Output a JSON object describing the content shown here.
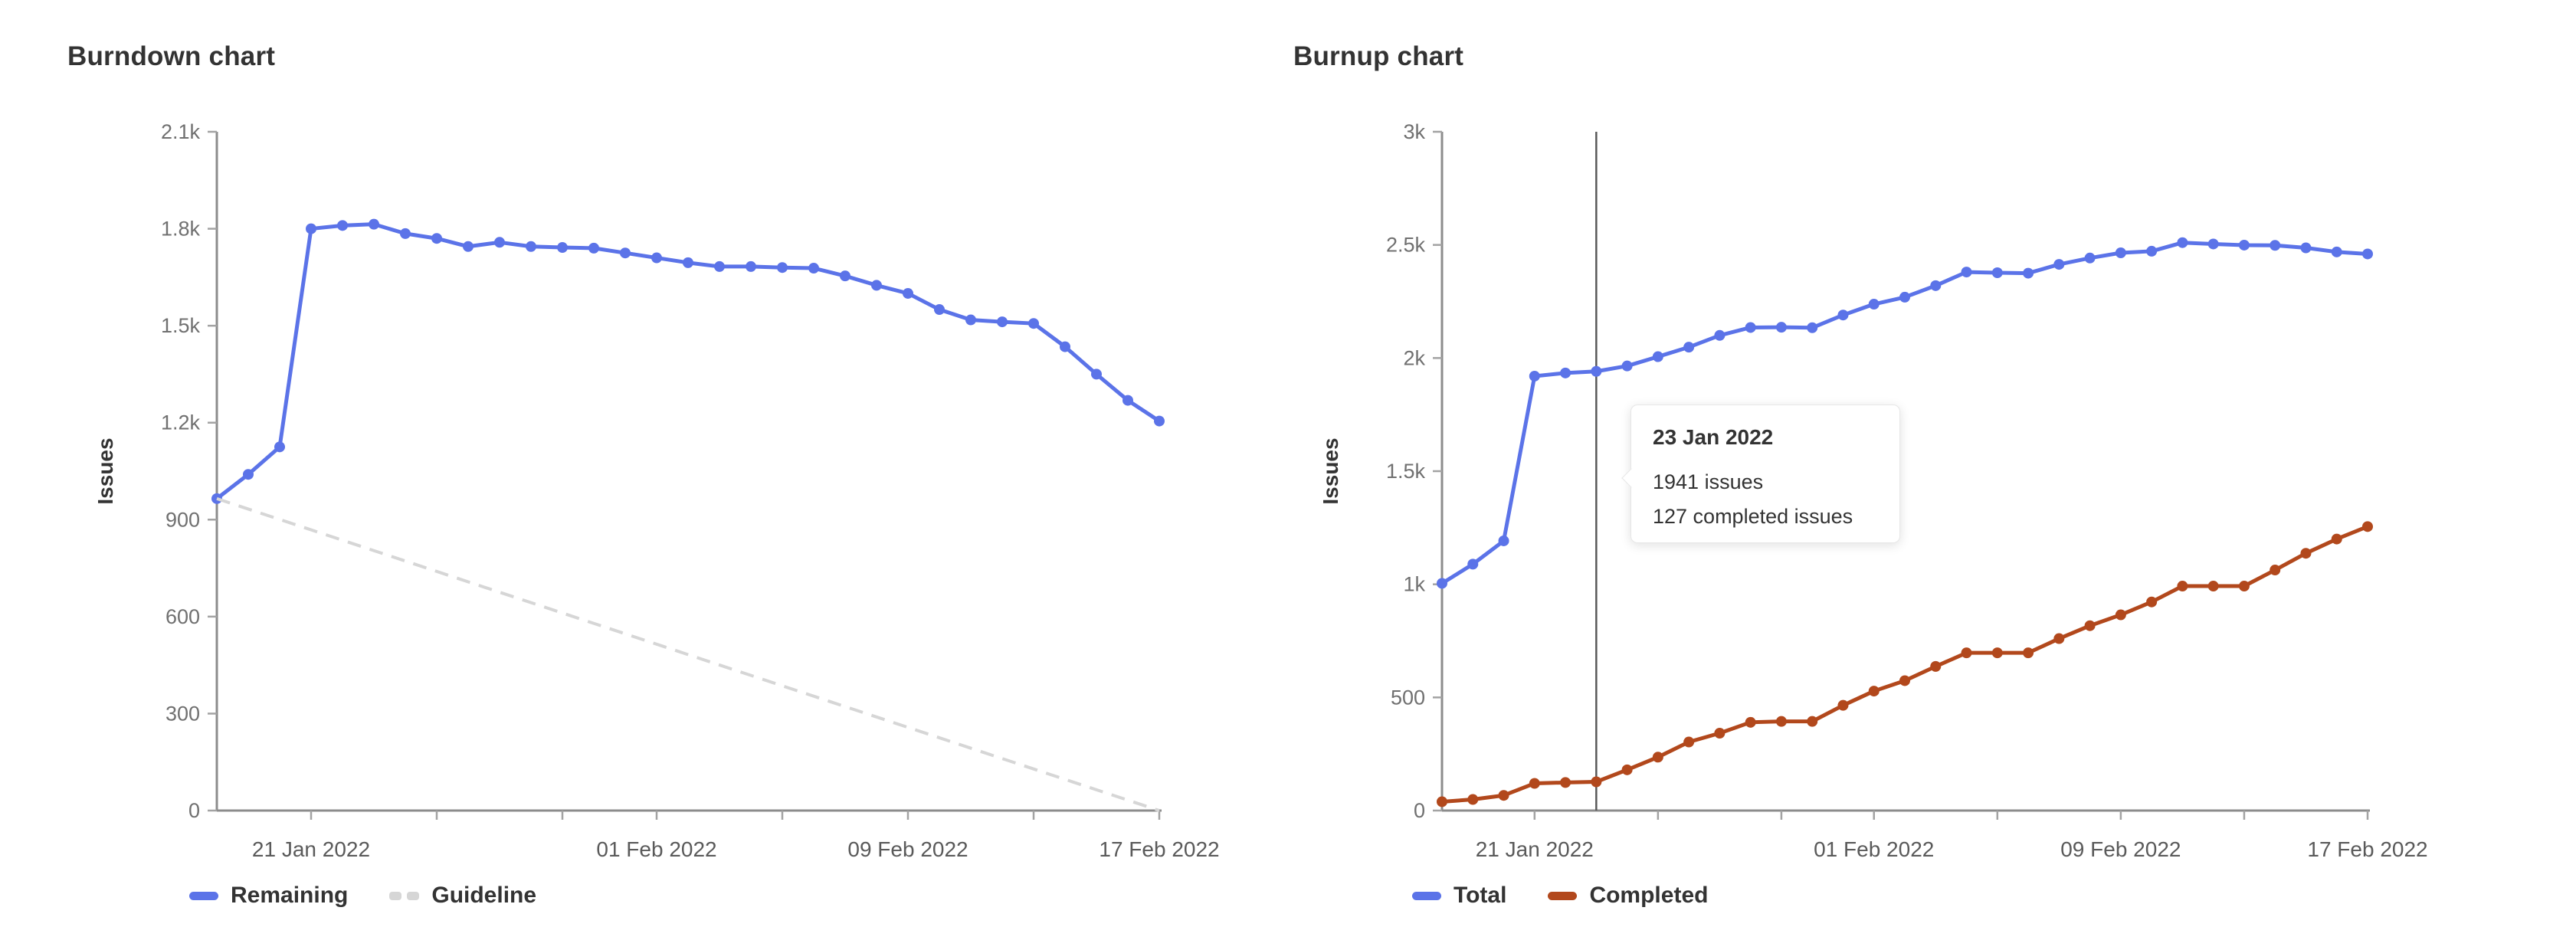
{
  "charts": {
    "burndown": {
      "title": "Burndown chart",
      "y_axis_label": "Issues",
      "legend": [
        {
          "label": "Remaining",
          "swatch": "blue"
        },
        {
          "label": "Guideline",
          "swatch": "guideline-dashed"
        }
      ]
    },
    "burnup": {
      "title": "Burnup chart",
      "y_axis_label": "Issues",
      "legend": [
        {
          "label": "Total",
          "swatch": "blue"
        },
        {
          "label": "Completed",
          "swatch": "orange"
        }
      ]
    }
  },
  "tooltip": {
    "date": "23 Jan 2022",
    "line1": "1941 issues",
    "line2": "127 completed issues",
    "anchor_date": "23 Jan 2022"
  },
  "colors": {
    "blue": "#5b73e8",
    "orange": "#b2481c",
    "guideline": "#d6d6d6",
    "axis_line": "#8c8c8c",
    "tick_mark": "#a3a3a3",
    "y_tick_text": "#707070",
    "x_tick_text": "#5a5a5a",
    "text_dark": "#333333",
    "hover_line": "#595959",
    "tooltip_border": "#e7e7e7"
  },
  "chart_data": [
    {
      "id": "burndown",
      "type": "line",
      "title": "Burndown chart",
      "xlabel": "",
      "ylabel": "Issues",
      "ylim": [
        0,
        2100
      ],
      "grid": false,
      "legend_position": "bottom-left",
      "x": [
        "18 Jan 2022",
        "19 Jan 2022",
        "20 Jan 2022",
        "21 Jan 2022",
        "22 Jan 2022",
        "23 Jan 2022",
        "24 Jan 2022",
        "25 Jan 2022",
        "26 Jan 2022",
        "27 Jan 2022",
        "28 Jan 2022",
        "29 Jan 2022",
        "30 Jan 2022",
        "31 Jan 2022",
        "01 Feb 2022",
        "02 Feb 2022",
        "03 Feb 2022",
        "04 Feb 2022",
        "05 Feb 2022",
        "06 Feb 2022",
        "07 Feb 2022",
        "08 Feb 2022",
        "09 Feb 2022",
        "10 Feb 2022",
        "11 Feb 2022",
        "12 Feb 2022",
        "13 Feb 2022",
        "14 Feb 2022",
        "15 Feb 2022",
        "16 Feb 2022",
        "17 Feb 2022"
      ],
      "x_ticks": {
        "labeled": [
          3,
          14,
          22,
          30
        ],
        "minor": [
          7,
          11,
          18,
          26
        ]
      },
      "y_ticks": {
        "values": [
          0,
          300,
          600,
          900,
          1200,
          1500,
          1800,
          2100
        ],
        "labels": [
          "0",
          "300",
          "600",
          "900",
          "1.2k",
          "1.5k",
          "1.8k",
          "2.1k"
        ]
      },
      "series": [
        {
          "name": "Remaining",
          "color": "blue",
          "style": "solid",
          "markers": true,
          "values": [
            965,
            1040,
            1125,
            1800,
            1810,
            1814,
            1785,
            1770,
            1745,
            1758,
            1745,
            1742,
            1740,
            1725,
            1710,
            1695,
            1683,
            1683,
            1680,
            1678,
            1654,
            1625,
            1600,
            1550,
            1518,
            1512,
            1507,
            1435,
            1350,
            1269,
            1205
          ]
        },
        {
          "name": "Guideline",
          "color": "guideline",
          "style": "dashed",
          "markers": false,
          "values_endpoints": {
            "x": [
              "18 Jan 2022",
              "17 Feb 2022"
            ],
            "values": [
              965,
              0
            ]
          }
        }
      ],
      "hover_index": null
    },
    {
      "id": "burnup",
      "type": "line",
      "title": "Burnup chart",
      "xlabel": "",
      "ylabel": "Issues",
      "ylim": [
        0,
        3000
      ],
      "grid": false,
      "legend_position": "bottom-left",
      "x": [
        "18 Jan 2022",
        "19 Jan 2022",
        "20 Jan 2022",
        "21 Jan 2022",
        "22 Jan 2022",
        "23 Jan 2022",
        "24 Jan 2022",
        "25 Jan 2022",
        "26 Jan 2022",
        "27 Jan 2022",
        "28 Jan 2022",
        "29 Jan 2022",
        "30 Jan 2022",
        "31 Jan 2022",
        "01 Feb 2022",
        "02 Feb 2022",
        "03 Feb 2022",
        "04 Feb 2022",
        "05 Feb 2022",
        "06 Feb 2022",
        "07 Feb 2022",
        "08 Feb 2022",
        "09 Feb 2022",
        "10 Feb 2022",
        "11 Feb 2022",
        "12 Feb 2022",
        "13 Feb 2022",
        "14 Feb 2022",
        "15 Feb 2022",
        "16 Feb 2022",
        "17 Feb 2022"
      ],
      "x_ticks": {
        "labeled": [
          3,
          14,
          22,
          30
        ],
        "minor": [
          7,
          11,
          18,
          26
        ]
      },
      "y_ticks": {
        "values": [
          0,
          500,
          1000,
          1500,
          2000,
          2500,
          3000
        ],
        "labels": [
          "0",
          "500",
          "1k",
          "1.5k",
          "2k",
          "2.5k",
          "3k"
        ]
      },
      "series": [
        {
          "name": "Total",
          "color": "blue",
          "style": "solid",
          "markers": true,
          "values": [
            1004,
            1089,
            1192,
            1920,
            1934,
            1941,
            1965,
            2006,
            2048,
            2100,
            2135,
            2136,
            2134,
            2190,
            2238,
            2269,
            2320,
            2380,
            2377,
            2375,
            2414,
            2442,
            2465,
            2472,
            2510,
            2504,
            2499,
            2498,
            2487,
            2469,
            2460
          ]
        },
        {
          "name": "Completed",
          "color": "orange",
          "style": "solid",
          "markers": true,
          "values": [
            39,
            49,
            67,
            120,
            124,
            127,
            180,
            236,
            303,
            342,
            390,
            394,
            394,
            465,
            528,
            574,
            637,
            697,
            697,
            697,
            760,
            817,
            865,
            922,
            992,
            992,
            992,
            1063,
            1137,
            1200,
            1255
          ]
        }
      ],
      "hover_index": 5
    }
  ]
}
